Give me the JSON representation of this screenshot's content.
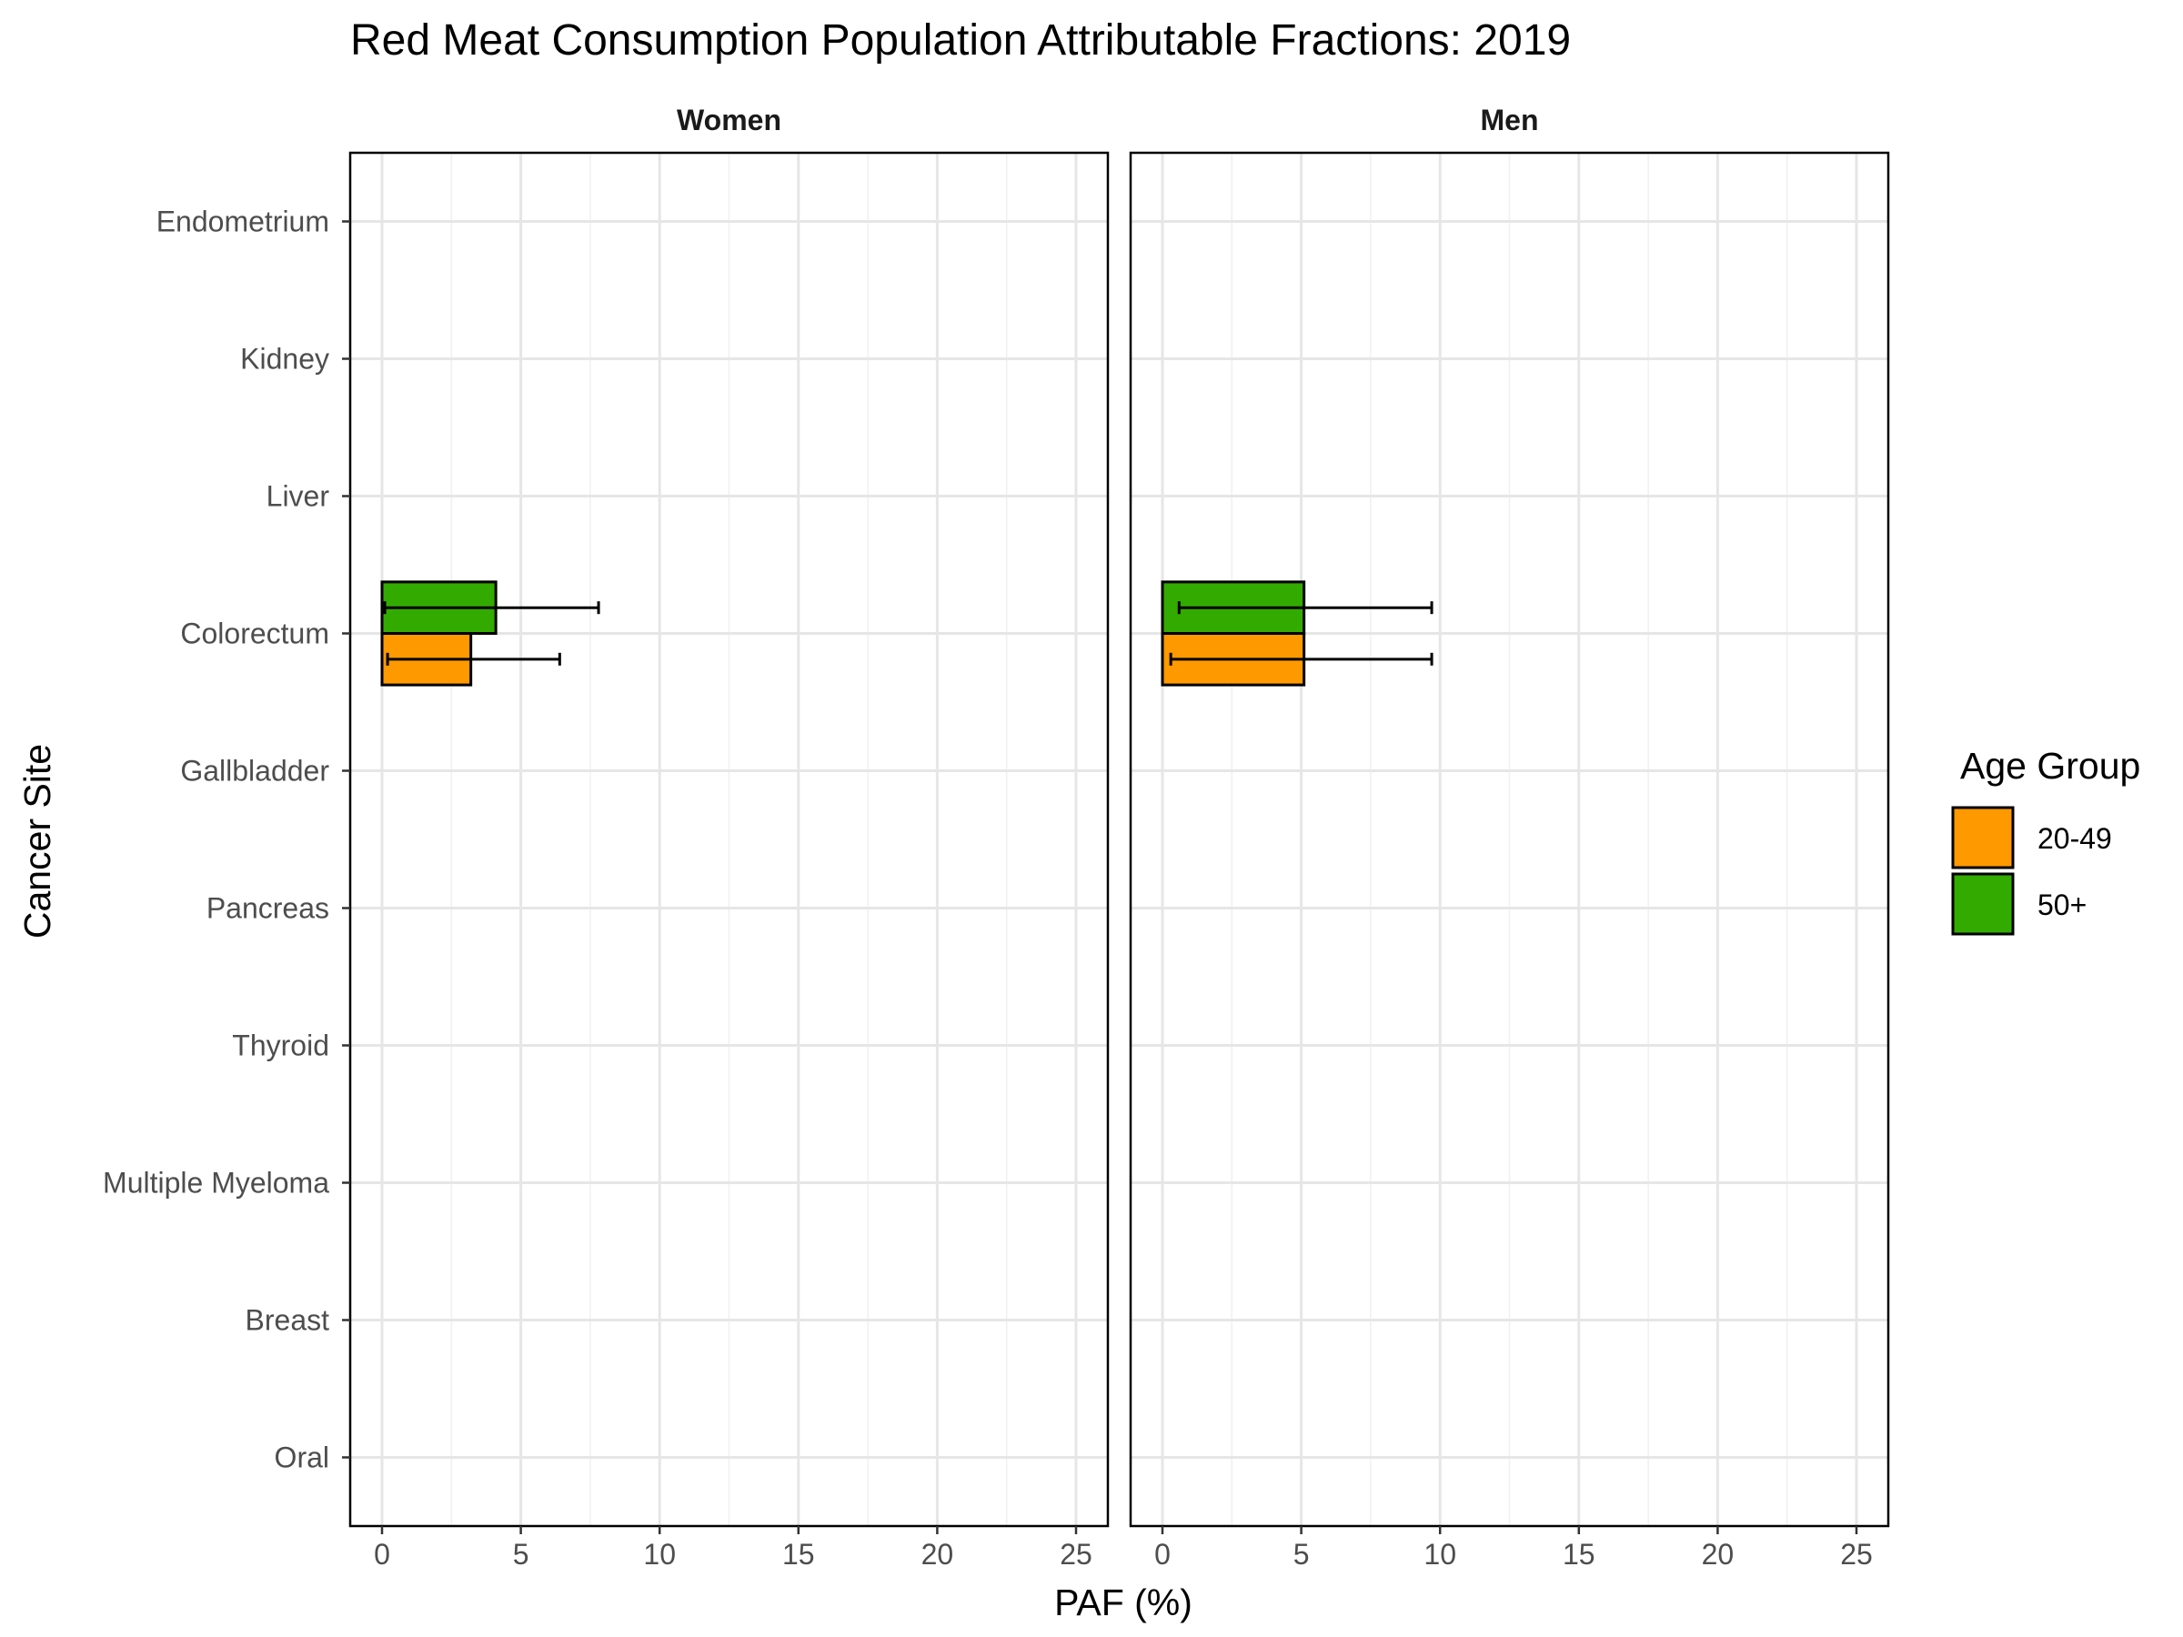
{
  "chart_data": {
    "type": "bar",
    "orientation": "horizontal",
    "title": "Red Meat Consumption  Population Attributable Fractions: 2019",
    "xlabel": "PAF (%)",
    "ylabel": "Cancer Site",
    "xlim": [
      0,
      25
    ],
    "x_ticks": [
      "0",
      "5",
      "10",
      "15",
      "20",
      "25"
    ],
    "categories": [
      "Endometrium",
      "Kidney",
      "Liver",
      "Colorectum",
      "Gallbladder",
      "Pancreas",
      "Thyroid",
      "Multiple Myeloma",
      "Breast",
      "Oral"
    ],
    "grid": true,
    "legend": {
      "title": "Age Group",
      "position": "right",
      "items": [
        {
          "label": "20-49",
          "color": "#FF9900"
        },
        {
          "label": "50+",
          "color": "#33AA00"
        }
      ]
    },
    "panels": [
      {
        "name": "Women",
        "series": [
          {
            "name": "20-49",
            "values": [
              0,
              0,
              0,
              3.2,
              0,
              0,
              0,
              0,
              0,
              0
            ],
            "lower": [
              0,
              0,
              0,
              0.2,
              0,
              0,
              0,
              0,
              0,
              0
            ],
            "upper": [
              0,
              0,
              0,
              6.4,
              0,
              0,
              0,
              0,
              0,
              0
            ]
          },
          {
            "name": "50+",
            "values": [
              0,
              0,
              0,
              4.1,
              0,
              0,
              0,
              0,
              0,
              0
            ],
            "lower": [
              0,
              0,
              0,
              0.1,
              0,
              0,
              0,
              0,
              0,
              0
            ],
            "upper": [
              0,
              0,
              0,
              7.8,
              0,
              0,
              0,
              0,
              0,
              0
            ]
          }
        ]
      },
      {
        "name": "Men",
        "series": [
          {
            "name": "20-49",
            "values": [
              0,
              0,
              0,
              5.1,
              0,
              0,
              0,
              0,
              0,
              0
            ],
            "lower": [
              0,
              0,
              0,
              0.3,
              0,
              0,
              0,
              0,
              0,
              0
            ],
            "upper": [
              0,
              0,
              0,
              9.7,
              0,
              0,
              0,
              0,
              0,
              0
            ]
          },
          {
            "name": "50+",
            "values": [
              0,
              0,
              0,
              5.1,
              0,
              0,
              0,
              0,
              0,
              0
            ],
            "lower": [
              0,
              0,
              0,
              0.6,
              0,
              0,
              0,
              0,
              0,
              0
            ],
            "upper": [
              0,
              0,
              0,
              9.7,
              0,
              0,
              0,
              0,
              0,
              0
            ]
          }
        ]
      }
    ]
  }
}
